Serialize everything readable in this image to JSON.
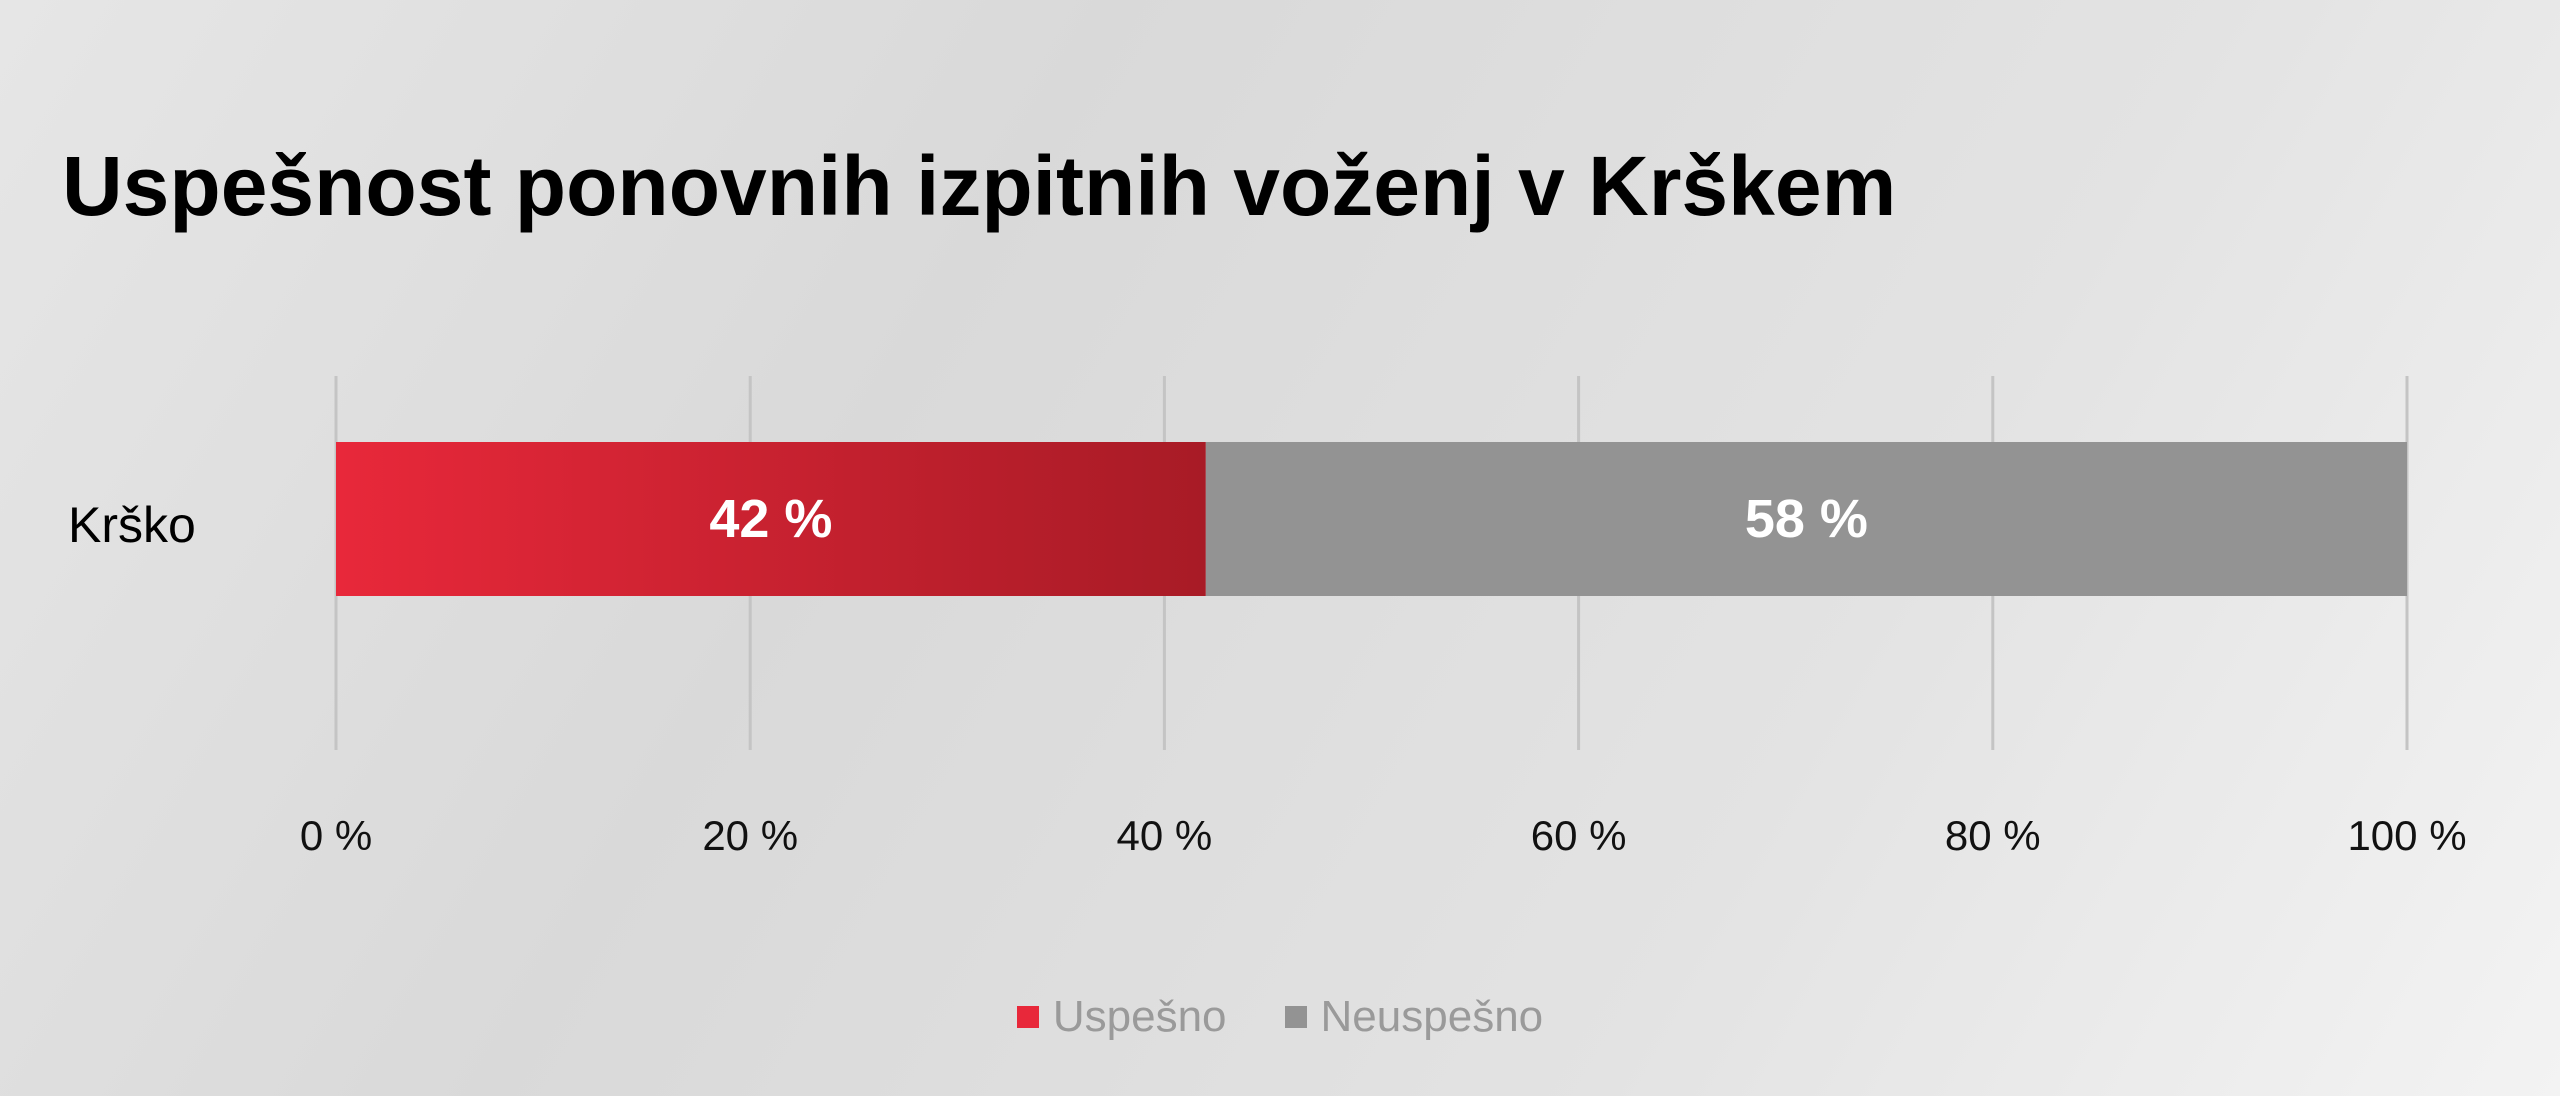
{
  "chart_data": {
    "type": "bar",
    "orientation": "horizontal",
    "stacked": true,
    "title": "Uspešnost ponovnih izpitnih voženj v Krškem",
    "categories": [
      "Krško"
    ],
    "series": [
      {
        "name": "Uspešno",
        "values": [
          42
        ],
        "labels": [
          "42 %"
        ],
        "color": "#e8283a",
        "color_end": "#a81b26"
      },
      {
        "name": "Neuspešno",
        "values": [
          58
        ],
        "labels": [
          "58 %"
        ],
        "color": "#939393"
      }
    ],
    "xlim": [
      0,
      100
    ],
    "xticks": [
      0,
      20,
      40,
      60,
      80,
      100
    ],
    "xtick_labels": [
      "0 %",
      "20 %",
      "40 %",
      "60 %",
      "80 %",
      "100 %"
    ],
    "xlabel": "",
    "ylabel": "",
    "grid": "vertical",
    "grid_color": "#c4c4c4",
    "legend_position": "bottom",
    "label_color": "#ffffff"
  }
}
